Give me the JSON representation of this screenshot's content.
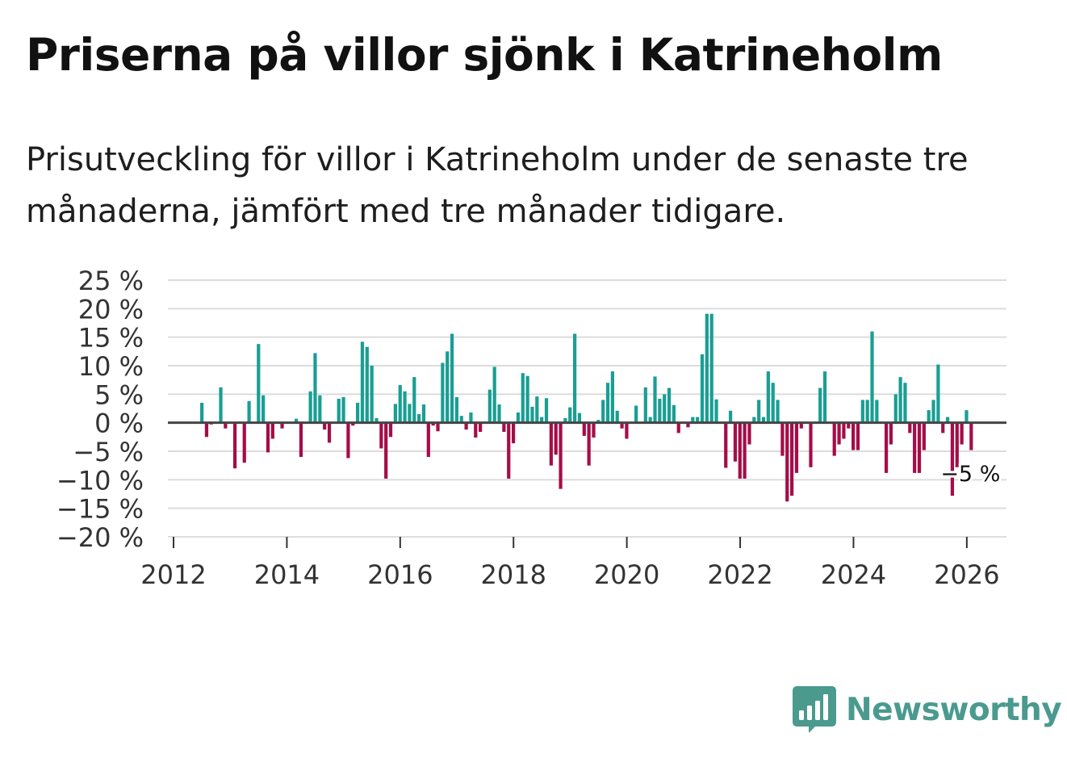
{
  "header": {
    "title": "Priserna på villor sjönk i Katrineholm",
    "subtitle": "Prisutveckling för villor i Katrineholm under de senaste tre månaderna, jämfört med tre månader tidigare."
  },
  "brand": {
    "name": "Newsworthy"
  },
  "colors": {
    "positive": "#1a9e94",
    "negative": "#a50d48",
    "grid": "#dcdcdc",
    "zero_line": "#444444",
    "brand": "#4a9a8e"
  },
  "chart_data": {
    "type": "bar",
    "title": "Priserna på villor sjönk i Katrineholm",
    "xlabel": "",
    "ylabel": "",
    "ylim": [
      -20,
      25
    ],
    "xlim": [
      2011.9,
      2026.7
    ],
    "yticks": [
      25,
      20,
      15,
      10,
      5,
      0,
      -5,
      -10,
      -15,
      -20
    ],
    "ytick_labels": [
      "25 %",
      "20 %",
      "15 %",
      "10 %",
      "5 %",
      "0 %",
      "−5 %",
      "−10 %",
      "−15 %",
      "−20 %"
    ],
    "xticks": [
      2012,
      2014,
      2016,
      2018,
      2020,
      2022,
      2024,
      2026
    ],
    "xtick_labels": [
      "2012",
      "2014",
      "2016",
      "2018",
      "2020",
      "2022",
      "2024",
      "2026"
    ],
    "bar_width_years": 0.06,
    "start_year": 2012.5,
    "step_years": 0.0833,
    "values": [
      3.5,
      -2.5,
      -0.3,
      0,
      6.2,
      -1,
      0,
      -8,
      0,
      -7,
      3.8,
      0,
      13.8,
      4.8,
      -5.2,
      -2.8,
      0,
      -1,
      0,
      0,
      0.7,
      -6,
      0,
      5.5,
      12.2,
      4.8,
      -1.2,
      -3.5,
      0,
      4.2,
      4.5,
      -6.2,
      -0.5,
      3.5,
      14.2,
      13.3,
      10,
      0.8,
      -4.5,
      -9.8,
      -2.5,
      3.3,
      6.6,
      5.5,
      3.3,
      8,
      1.5,
      3.2,
      -6,
      -0.5,
      -1.5,
      10.5,
      12.5,
      15.6,
      4.5,
      1.2,
      -1.2,
      1.8,
      -2.6,
      -1.6,
      0,
      5.8,
      9.8,
      3.2,
      -1.6,
      -9.8,
      -3.6,
      1.8,
      8.7,
      8.2,
      2.8,
      4.6,
      1,
      4.3,
      -7.5,
      -5.6,
      -11.6,
      0.8,
      2.7,
      15.6,
      1.7,
      -2.3,
      -7.5,
      -2.6,
      0.5,
      4,
      7,
      9,
      2.1,
      -1,
      -2.8,
      0,
      3,
      0,
      6.2,
      1,
      8.1,
      4.2,
      5,
      6.1,
      3.1,
      -1.8,
      0,
      -0.8,
      1,
      1,
      12,
      19.1,
      19.1,
      4.1,
      0,
      -7.9,
      2.1,
      -6.8,
      -9.8,
      -9.8,
      -3.8,
      1,
      4,
      1,
      9,
      7,
      4,
      -5.8,
      -13.8,
      -12.8,
      -8.8,
      -1,
      0,
      -7.8,
      0,
      6.1,
      9,
      0,
      -5.8,
      -3.8,
      -2.8,
      -1,
      -4.8,
      -4.8,
      4,
      4,
      16,
      4,
      0,
      -8.8,
      -3.8,
      5,
      8,
      7,
      -1.8,
      -8.8,
      -8.8,
      -4.8,
      2.2,
      4,
      10.2,
      -1.8,
      1,
      -12.8,
      -7.8,
      -3.8,
      2.2,
      -4.8
    ],
    "annotation": {
      "label": "−5 %",
      "x": 2025.95,
      "y": -8.8
    }
  }
}
